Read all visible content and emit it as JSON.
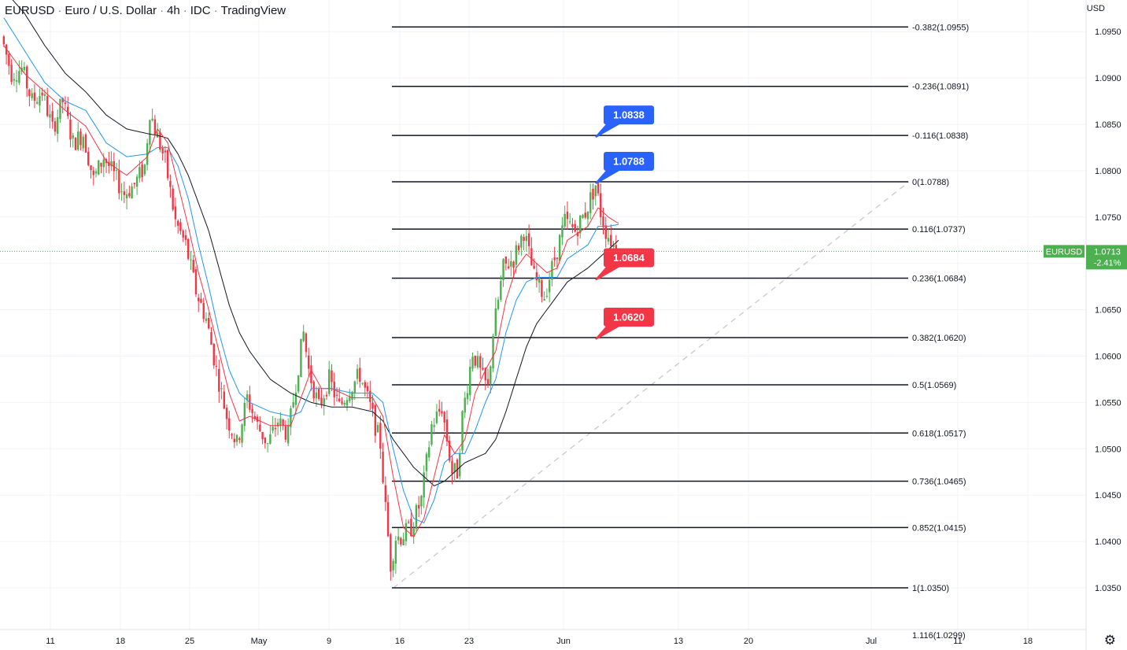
{
  "header": {
    "symbol": "EURUSD",
    "name": "Euro / U.S. Dollar",
    "interval": "4h",
    "source": "IDC",
    "platform": "TradingView",
    "currency": "USD"
  },
  "chart_data": {
    "type": "candlestick",
    "y_axis": {
      "range": [
        1.0305,
        1.1005
      ],
      "ticks": [
        "1.0350",
        "1.0400",
        "1.0450",
        "1.0500",
        "1.0550",
        "1.0600",
        "1.0650",
        "1.0700",
        "1.0750",
        "1.0800",
        "1.0850",
        "1.0900",
        "1.0950"
      ]
    },
    "x_axis": {
      "labels": [
        "11",
        "18",
        "25",
        "May",
        "9",
        "16",
        "23",
        "Jun",
        "13",
        "20",
        "Jul",
        "11",
        "18"
      ]
    },
    "last_price": {
      "symbol": "EURUSD",
      "value": "1.0713",
      "change": "-2.41%",
      "color": "#4caf50"
    },
    "fibonacci": [
      {
        "label": "-0.382(1.0955)",
        "price": 1.0955
      },
      {
        "label": "-0.236(1.0891)",
        "price": 1.0891
      },
      {
        "label": "-0.116(1.0838)",
        "price": 1.0838
      },
      {
        "label": "0(1.0788)",
        "price": 1.0788
      },
      {
        "label": "0.116(1.0737)",
        "price": 1.0737
      },
      {
        "label": "0.236(1.0684)",
        "price": 1.0684
      },
      {
        "label": "0.382(1.0620)",
        "price": 1.062
      },
      {
        "label": "0.5(1.0569)",
        "price": 1.0569
      },
      {
        "label": "0.618(1.0517)",
        "price": 1.0517
      },
      {
        "label": "0.736(1.0465)",
        "price": 1.0465
      },
      {
        "label": "0.852(1.0415)",
        "price": 1.0415
      },
      {
        "label": "1(1.0350)",
        "price": 1.035
      },
      {
        "label": "1.116(1.0299)",
        "price": 1.0299
      }
    ],
    "callouts": [
      {
        "text": "1.0838",
        "price": 1.0838,
        "color": "#2962ff"
      },
      {
        "text": "1.0788",
        "price": 1.0788,
        "color": "#2962ff"
      },
      {
        "text": "1.0684",
        "price": 1.0684,
        "color": "#f23645"
      },
      {
        "text": "1.0620",
        "price": 1.062,
        "color": "#f23645"
      }
    ],
    "colors": {
      "up": "#4caf50",
      "down": "#f23645",
      "ma_fast": "#f23645",
      "ma_mid": "#2196f3",
      "ma_slow": "#131722"
    },
    "price_path": [
      [
        0,
        1.0945
      ],
      [
        4,
        1.0905
      ],
      [
        8,
        1.091
      ],
      [
        12,
        1.0875
      ],
      [
        16,
        1.0885
      ],
      [
        20,
        1.0845
      ],
      [
        24,
        1.0875
      ],
      [
        28,
        1.083
      ],
      [
        32,
        1.084
      ],
      [
        36,
        1.079
      ],
      [
        40,
        1.0815
      ],
      [
        44,
        1.0795
      ],
      [
        48,
        1.0775
      ],
      [
        52,
        1.0785
      ],
      [
        56,
        1.0805
      ],
      [
        58,
        1.0865
      ],
      [
        60,
        1.0845
      ],
      [
        64,
        1.081
      ],
      [
        68,
        1.0745
      ],
      [
        72,
        1.072
      ],
      [
        76,
        1.067
      ],
      [
        80,
        1.064
      ],
      [
        84,
        1.0585
      ],
      [
        88,
        1.0535
      ],
      [
        92,
        1.0505
      ],
      [
        96,
        1.0555
      ],
      [
        100,
        1.0525
      ],
      [
        104,
        1.0505
      ],
      [
        108,
        1.053
      ],
      [
        112,
        1.0515
      ],
      [
        116,
        1.059
      ],
      [
        118,
        1.0625
      ],
      [
        120,
        1.0585
      ],
      [
        124,
        1.0545
      ],
      [
        128,
        1.0575
      ],
      [
        132,
        1.0545
      ],
      [
        136,
        1.0565
      ],
      [
        140,
        1.058
      ],
      [
        144,
        1.0545
      ],
      [
        148,
        1.0505
      ],
      [
        150,
        1.0435
      ],
      [
        152,
        1.0375
      ],
      [
        154,
        1.0405
      ],
      [
        156,
        1.0405
      ],
      [
        160,
        1.0415
      ],
      [
        164,
        1.0445
      ],
      [
        168,
        1.0525
      ],
      [
        172,
        1.0545
      ],
      [
        176,
        1.0475
      ],
      [
        178,
        1.0475
      ],
      [
        180,
        1.0535
      ],
      [
        184,
        1.0605
      ],
      [
        188,
        1.0575
      ],
      [
        190,
        1.0565
      ],
      [
        192,
        1.0625
      ],
      [
        196,
        1.0695
      ],
      [
        200,
        1.0705
      ],
      [
        204,
        1.0735
      ],
      [
        208,
        1.0685
      ],
      [
        212,
        1.0665
      ],
      [
        216,
        1.0705
      ],
      [
        220,
        1.0745
      ],
      [
        224,
        1.0735
      ],
      [
        228,
        1.0755
      ],
      [
        232,
        1.0785
      ],
      [
        234,
        1.0755
      ],
      [
        236,
        1.0735
      ],
      [
        238,
        1.0725
      ],
      [
        240,
        1.0713
      ]
    ],
    "ma_fast_path": [
      [
        0,
        1.0935
      ],
      [
        8,
        1.0905
      ],
      [
        16,
        1.0885
      ],
      [
        24,
        1.0865
      ],
      [
        32,
        1.0848
      ],
      [
        40,
        1.081
      ],
      [
        48,
        1.0795
      ],
      [
        56,
        1.0815
      ],
      [
        60,
        1.0845
      ],
      [
        64,
        1.083
      ],
      [
        68,
        1.0785
      ],
      [
        72,
        1.074
      ],
      [
        76,
        1.069
      ],
      [
        80,
        1.065
      ],
      [
        84,
        1.0605
      ],
      [
        88,
        1.056
      ],
      [
        92,
        1.053
      ],
      [
        96,
        1.0535
      ],
      [
        104,
        1.0525
      ],
      [
        112,
        1.0525
      ],
      [
        116,
        1.0555
      ],
      [
        120,
        1.0585
      ],
      [
        124,
        1.0565
      ],
      [
        128,
        1.0565
      ],
      [
        136,
        1.0555
      ],
      [
        144,
        1.0555
      ],
      [
        148,
        1.0535
      ],
      [
        152,
        1.047
      ],
      [
        156,
        1.0415
      ],
      [
        160,
        1.0405
      ],
      [
        164,
        1.0425
      ],
      [
        168,
        1.047
      ],
      [
        172,
        1.0515
      ],
      [
        176,
        1.0495
      ],
      [
        180,
        1.051
      ],
      [
        184,
        1.056
      ],
      [
        188,
        1.0585
      ],
      [
        192,
        1.0605
      ],
      [
        196,
        1.066
      ],
      [
        200,
        1.0695
      ],
      [
        204,
        1.071
      ],
      [
        208,
        1.07
      ],
      [
        212,
        1.069
      ],
      [
        216,
        1.0695
      ],
      [
        220,
        1.0725
      ],
      [
        228,
        1.074
      ],
      [
        232,
        1.076
      ],
      [
        236,
        1.075
      ],
      [
        240,
        1.0743
      ]
    ],
    "ma_mid_path": [
      [
        0,
        1.0965
      ],
      [
        8,
        1.093
      ],
      [
        16,
        1.0895
      ],
      [
        24,
        1.0875
      ],
      [
        32,
        1.0865
      ],
      [
        40,
        1.083
      ],
      [
        48,
        1.0815
      ],
      [
        56,
        1.0818
      ],
      [
        60,
        1.0825
      ],
      [
        64,
        1.0825
      ],
      [
        68,
        1.0805
      ],
      [
        72,
        1.077
      ],
      [
        76,
        1.072
      ],
      [
        80,
        1.0675
      ],
      [
        84,
        1.0625
      ],
      [
        88,
        1.0585
      ],
      [
        92,
        1.056
      ],
      [
        96,
        1.055
      ],
      [
        104,
        1.054
      ],
      [
        112,
        1.0535
      ],
      [
        116,
        1.054
      ],
      [
        120,
        1.0565
      ],
      [
        124,
        1.0565
      ],
      [
        128,
        1.0565
      ],
      [
        136,
        1.056
      ],
      [
        144,
        1.056
      ],
      [
        148,
        1.055
      ],
      [
        152,
        1.05
      ],
      [
        156,
        1.0455
      ],
      [
        160,
        1.0425
      ],
      [
        164,
        1.042
      ],
      [
        168,
        1.0445
      ],
      [
        172,
        1.0485
      ],
      [
        176,
        1.0495
      ],
      [
        180,
        1.0495
      ],
      [
        184,
        1.052
      ],
      [
        188,
        1.055
      ],
      [
        192,
        1.0575
      ],
      [
        196,
        1.0625
      ],
      [
        200,
        1.066
      ],
      [
        204,
        1.068
      ],
      [
        208,
        1.0685
      ],
      [
        212,
        1.0685
      ],
      [
        216,
        1.0685
      ],
      [
        220,
        1.0705
      ],
      [
        228,
        1.072
      ],
      [
        232,
        1.074
      ],
      [
        236,
        1.074
      ],
      [
        240,
        1.0742
      ]
    ],
    "ma_slow_path": [
      [
        0,
        1.0995
      ],
      [
        8,
        1.097
      ],
      [
        16,
        1.0935
      ],
      [
        24,
        1.0905
      ],
      [
        32,
        1.0885
      ],
      [
        40,
        1.086
      ],
      [
        48,
        1.0845
      ],
      [
        56,
        1.084
      ],
      [
        60,
        1.0838
      ],
      [
        64,
        1.0835
      ],
      [
        68,
        1.0818
      ],
      [
        72,
        1.0795
      ],
      [
        76,
        1.0765
      ],
      [
        80,
        1.0735
      ],
      [
        84,
        1.0695
      ],
      [
        88,
        1.0655
      ],
      [
        92,
        1.0625
      ],
      [
        96,
        1.0605
      ],
      [
        104,
        1.0575
      ],
      [
        112,
        1.056
      ],
      [
        120,
        1.055
      ],
      [
        128,
        1.0545
      ],
      [
        136,
        1.0545
      ],
      [
        144,
        1.054
      ],
      [
        148,
        1.053
      ],
      [
        152,
        1.051
      ],
      [
        156,
        1.0495
      ],
      [
        160,
        1.048
      ],
      [
        164,
        1.047
      ],
      [
        168,
        1.046
      ],
      [
        172,
        1.0465
      ],
      [
        176,
        1.0475
      ],
      [
        180,
        1.0485
      ],
      [
        184,
        1.049
      ],
      [
        188,
        1.0495
      ],
      [
        192,
        1.051
      ],
      [
        196,
        1.054
      ],
      [
        200,
        1.0575
      ],
      [
        204,
        1.061
      ],
      [
        208,
        1.0635
      ],
      [
        212,
        1.065
      ],
      [
        216,
        1.0665
      ],
      [
        220,
        1.068
      ],
      [
        228,
        1.0695
      ],
      [
        232,
        1.0705
      ],
      [
        236,
        1.0715
      ],
      [
        240,
        1.0725
      ]
    ]
  }
}
